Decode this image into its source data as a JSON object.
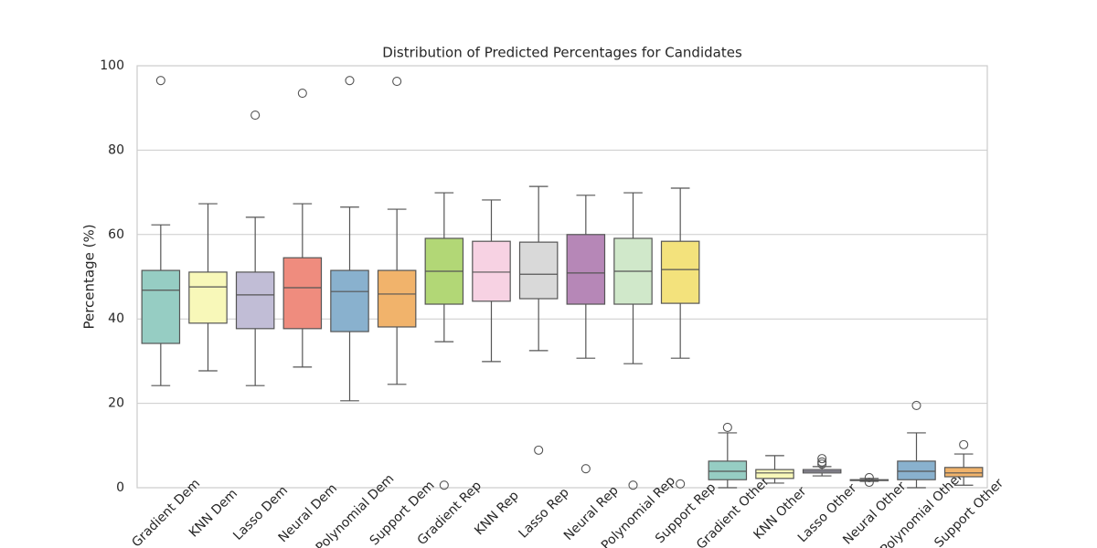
{
  "chart_data": {
    "type": "box",
    "title": "Distribution of Predicted Percentages for Candidates",
    "ylabel": "Percentage (%)",
    "categories": [
      "Gradient Dem",
      "KNN Dem",
      "Lasso Dem",
      "Neural Dem",
      "Polynomial Dem",
      "Support Dem",
      "Gradient Rep",
      "KNN Rep",
      "Lasso Rep",
      "Neural Rep",
      "Polynomial Rep",
      "Support Rep",
      "Gradient Other",
      "KNN Other",
      "Lasso Other",
      "Neural Other",
      "Polynomial Other",
      "Support Other"
    ],
    "colors": [
      "#96cdc3",
      "#f8f8b9",
      "#c1bdd6",
      "#ef8c7e",
      "#89b1ce",
      "#f1b36b",
      "#b2d776",
      "#f7d2e3",
      "#d9d9d9",
      "#b687b7",
      "#d0e8ca",
      "#f3e27c",
      "#96cdc3",
      "#f8f8b9",
      "#c1bdd6",
      "#ef8c7e",
      "#89b1ce",
      "#f1b36b"
    ],
    "boxes": [
      {
        "whislo": 24.2,
        "q1": 34.2,
        "med": 46.8,
        "q3": 51.5,
        "whishi": 62.3,
        "fliers": [
          96.5
        ]
      },
      {
        "whislo": 27.7,
        "q1": 39.0,
        "med": 47.6,
        "q3": 51.1,
        "whishi": 67.3,
        "fliers": []
      },
      {
        "whislo": 24.2,
        "q1": 37.7,
        "med": 45.7,
        "q3": 51.1,
        "whishi": 64.1,
        "fliers": [
          88.3
        ]
      },
      {
        "whislo": 28.6,
        "q1": 37.7,
        "med": 47.4,
        "q3": 54.5,
        "whishi": 67.3,
        "fliers": [
          93.5
        ]
      },
      {
        "whislo": 20.6,
        "q1": 37.0,
        "med": 46.5,
        "q3": 51.5,
        "whishi": 66.5,
        "fliers": [
          96.5
        ]
      },
      {
        "whislo": 24.5,
        "q1": 38.1,
        "med": 45.9,
        "q3": 51.5,
        "whishi": 66.0,
        "fliers": [
          96.3
        ]
      },
      {
        "whislo": 34.6,
        "q1": 43.5,
        "med": 51.3,
        "q3": 59.1,
        "whishi": 69.9,
        "fliers": [
          0.6
        ]
      },
      {
        "whislo": 29.9,
        "q1": 44.2,
        "med": 51.1,
        "q3": 58.4,
        "whishi": 68.2,
        "fliers": []
      },
      {
        "whislo": 32.5,
        "q1": 44.8,
        "med": 50.6,
        "q3": 58.2,
        "whishi": 71.4,
        "fliers": [
          8.9
        ]
      },
      {
        "whislo": 30.7,
        "q1": 43.5,
        "med": 50.9,
        "q3": 60.0,
        "whishi": 69.3,
        "fliers": [
          4.5
        ]
      },
      {
        "whislo": 29.4,
        "q1": 43.5,
        "med": 51.3,
        "q3": 59.1,
        "whishi": 69.9,
        "fliers": [
          0.6
        ]
      },
      {
        "whislo": 30.7,
        "q1": 43.7,
        "med": 51.7,
        "q3": 58.4,
        "whishi": 71.0,
        "fliers": [
          0.9
        ]
      },
      {
        "whislo": 0.0,
        "q1": 1.9,
        "med": 3.9,
        "q3": 6.3,
        "whishi": 13.0,
        "fliers": [
          14.3
        ]
      },
      {
        "whislo": 1.1,
        "q1": 2.2,
        "med": 3.5,
        "q3": 4.3,
        "whishi": 7.6,
        "fliers": []
      },
      {
        "whislo": 2.8,
        "q1": 3.5,
        "med": 3.9,
        "q3": 4.3,
        "whishi": 5.0,
        "fliers": [
          6.9,
          6.1,
          5.6
        ]
      },
      {
        "whislo": 1.5,
        "q1": 1.7,
        "med": 1.8,
        "q3": 1.9,
        "whishi": 2.2,
        "fliers": [
          2.4,
          1.3
        ]
      },
      {
        "whislo": 0.0,
        "q1": 1.9,
        "med": 3.9,
        "q3": 6.3,
        "whishi": 13.0,
        "fliers": [
          19.5
        ]
      },
      {
        "whislo": 0.6,
        "q1": 2.6,
        "med": 3.5,
        "q3": 4.8,
        "whishi": 8.0,
        "fliers": [
          10.2
        ]
      }
    ],
    "ylim": [
      0,
      100
    ],
    "yticks": [
      0,
      20,
      40,
      60,
      80,
      100
    ],
    "grid": true
  }
}
